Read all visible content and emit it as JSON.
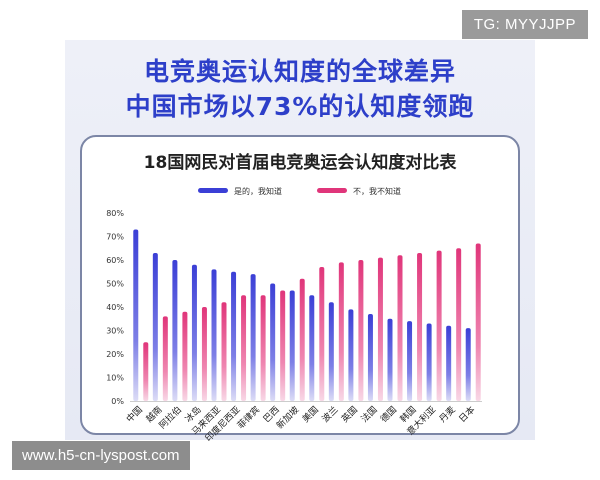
{
  "headline": {
    "line1": "电竞奥运认知度的全球差异",
    "line2": "中国市场以73%的认知度领跑"
  },
  "overlays": {
    "tag": "TG: MYYJJPP",
    "url": "www.h5-cn-lyspost.com"
  },
  "colors": {
    "yes": "#3b3fd6",
    "no": "#e0357a",
    "title": "#2d3fc9"
  },
  "chart_data": {
    "type": "bar",
    "title": "18国网民对首届电竞奥运会认知度对比表",
    "categories": [
      "中国",
      "越南",
      "阿拉伯",
      "冰岛",
      "马来西亚",
      "印度尼西亚",
      "菲律宾",
      "巴西",
      "新加坡",
      "美国",
      "波兰",
      "英国",
      "法国",
      "德国",
      "韩国",
      "意大利亚",
      "丹麦",
      "日本"
    ],
    "series": [
      {
        "name": "是的，我知道",
        "values": [
          73,
          63,
          60,
          58,
          56,
          55,
          54,
          50,
          47,
          45,
          42,
          39,
          37,
          35,
          34,
          33,
          32,
          31
        ]
      },
      {
        "name": "不，我不知道",
        "values": [
          25,
          36,
          38,
          40,
          42,
          45,
          45,
          47,
          52,
          57,
          59,
          60,
          61,
          62,
          63,
          64,
          65,
          67
        ]
      }
    ],
    "yticks": [
      "0%",
      "10%",
      "20%",
      "30%",
      "40%",
      "50%",
      "60%",
      "70%",
      "80%"
    ],
    "ylim": [
      0,
      80
    ],
    "legend_position": "top-center",
    "grid": false
  }
}
